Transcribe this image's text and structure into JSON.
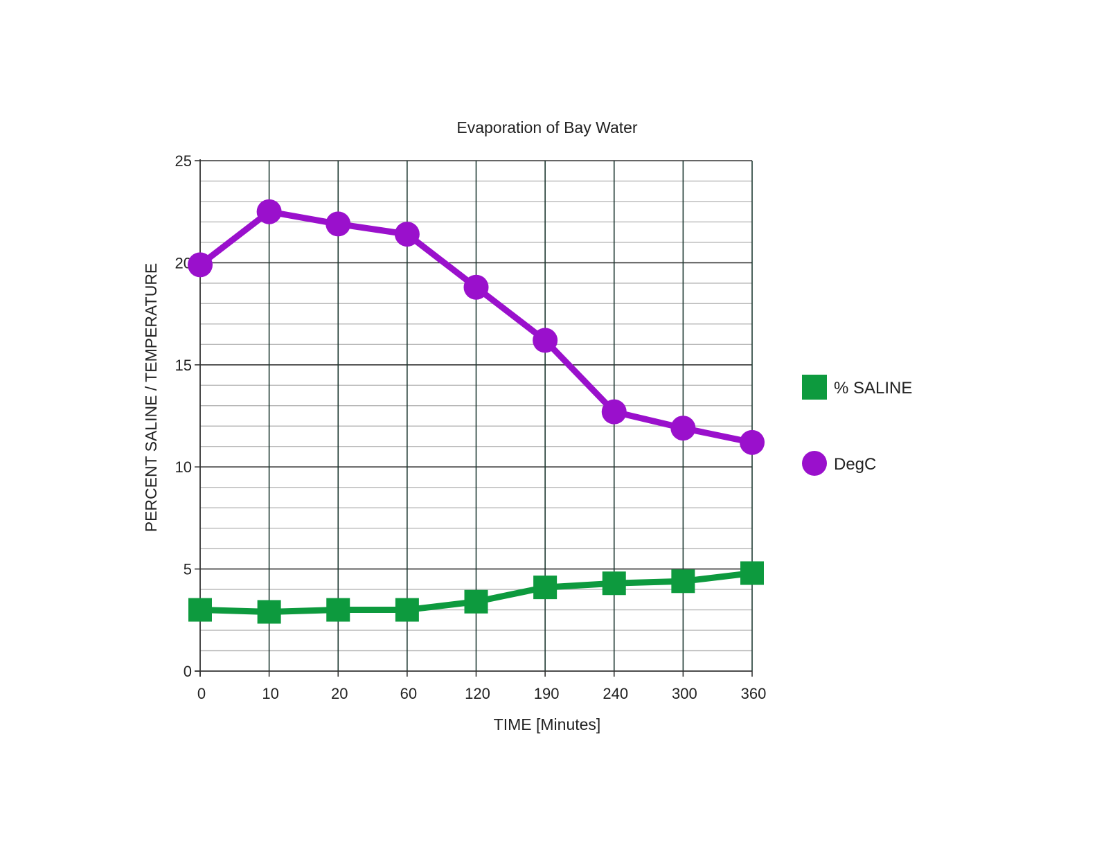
{
  "chart_data": {
    "type": "line",
    "title": "Evaporation of Bay Water",
    "xlabel": "TIME [Minutes]",
    "ylabel": "PERCENT SALINE / TEMPERATURE",
    "categories": [
      "0",
      "10",
      "20",
      "60",
      "120",
      "190",
      "240",
      "300",
      "360"
    ],
    "ylim": [
      0,
      25
    ],
    "yticks": [
      0,
      5,
      10,
      15,
      20,
      25
    ],
    "y_minor_step": 1,
    "grid": true,
    "legend_position": "right",
    "series": [
      {
        "name": "% SALINE",
        "marker": "square",
        "color": "#0d9a3e",
        "values": [
          3.0,
          2.9,
          3.0,
          3.0,
          3.4,
          4.1,
          4.3,
          4.4,
          4.8
        ]
      },
      {
        "name": "DegC",
        "marker": "circle",
        "color": "#9a10cc",
        "values": [
          19.9,
          22.5,
          21.9,
          21.4,
          18.8,
          16.2,
          12.7,
          11.9,
          11.2
        ]
      }
    ]
  }
}
